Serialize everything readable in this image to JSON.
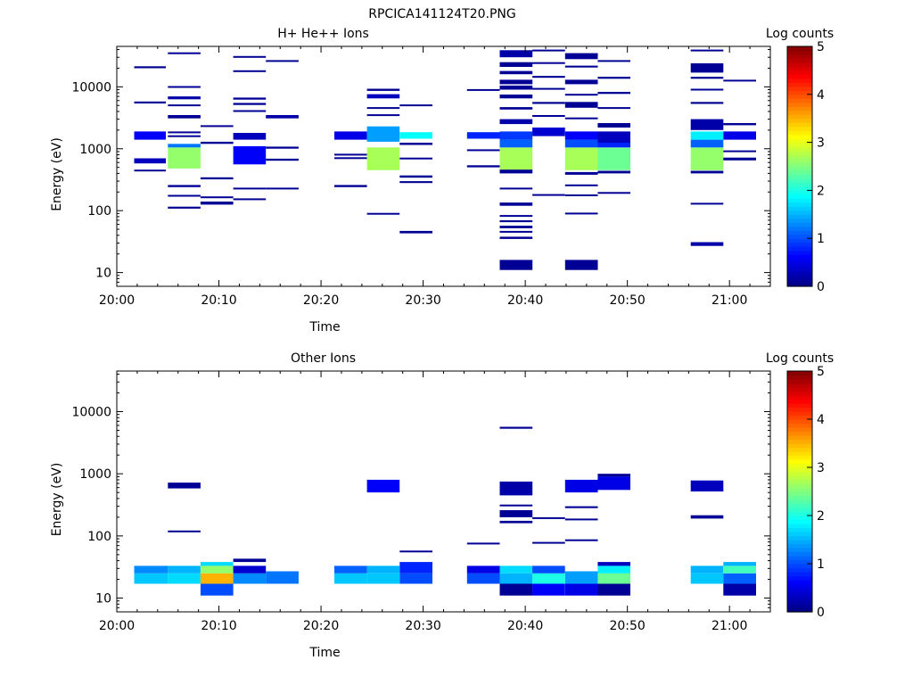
{
  "page": {
    "title": "RPCICA141124T20.PNG"
  },
  "chart_data": [
    {
      "type": "heatmap",
      "title": "H+ He++ Ions",
      "xlabel": "Time",
      "ylabel": "Energy (eV)",
      "x_ticks": [
        "20:00",
        "20:10",
        "20:20",
        "20:30",
        "20:40",
        "20:50",
        "21:00"
      ],
      "x_tick_minutes": [
        0,
        10,
        20,
        30,
        40,
        50,
        60
      ],
      "xlim_minutes": [
        0,
        64
      ],
      "y_scale": "log",
      "y_ticks": [
        "10",
        "100",
        "1000",
        "10000"
      ],
      "y_tick_values": [
        10,
        100,
        1000,
        10000
      ],
      "ylim": [
        6,
        45000
      ],
      "colorbar": {
        "label": "Log counts",
        "ticks": [
          "0",
          "1",
          "2",
          "3",
          "4",
          "5"
        ],
        "range": [
          0,
          5
        ]
      },
      "cells": [
        [
          1.7,
          4.8,
          1400,
          1900,
          0.6
        ],
        [
          1.7,
          4.8,
          580,
          700,
          0.3
        ],
        [
          1.7,
          4.8,
          20000,
          21500,
          0.1
        ],
        [
          1.7,
          4.8,
          5400,
          5800,
          0.1
        ],
        [
          1.7,
          4.8,
          430,
          460,
          0.1
        ],
        [
          5.0,
          8.2,
          480,
          1050,
          2.6
        ],
        [
          5.0,
          8.2,
          1050,
          1200,
          1.2
        ],
        [
          5.0,
          8.2,
          6300,
          7000,
          0.2
        ],
        [
          5.0,
          8.2,
          3100,
          3500,
          0.1
        ],
        [
          5.0,
          8.2,
          9700,
          10300,
          0.1
        ],
        [
          5.0,
          8.2,
          34000,
          36000,
          0.1
        ],
        [
          5.0,
          8.2,
          4900,
          5200,
          0.1
        ],
        [
          5.0,
          8.2,
          1800,
          1900,
          0.1
        ],
        [
          5.0,
          8.2,
          1550,
          1650,
          0.1
        ],
        [
          5.0,
          8.2,
          240,
          260,
          0.1
        ],
        [
          5.0,
          8.2,
          170,
          180,
          0.1
        ],
        [
          5.0,
          8.2,
          108,
          116,
          0.1
        ],
        [
          8.2,
          11.4,
          2250,
          2400,
          0.1
        ],
        [
          8.2,
          11.4,
          1200,
          1300,
          0.1
        ],
        [
          8.2,
          11.4,
          320,
          345,
          0.1
        ],
        [
          8.2,
          11.4,
          160,
          170,
          0.1
        ],
        [
          8.2,
          11.4,
          125,
          140,
          0.1
        ],
        [
          11.4,
          14.6,
          560,
          1100,
          0.6
        ],
        [
          11.4,
          14.6,
          1400,
          1800,
          0.3
        ],
        [
          11.4,
          14.6,
          6200,
          6700,
          0.1
        ],
        [
          11.4,
          14.6,
          5100,
          5500,
          0.1
        ],
        [
          11.4,
          14.6,
          4000,
          4200,
          0.1
        ],
        [
          11.4,
          14.6,
          17500,
          18500,
          0.1
        ],
        [
          11.4,
          14.6,
          30000,
          31500,
          0.1
        ],
        [
          11.4,
          14.6,
          225,
          235,
          0.1
        ],
        [
          11.4,
          14.6,
          148,
          158,
          0.1
        ],
        [
          14.6,
          17.8,
          3100,
          3500,
          0.2
        ],
        [
          14.6,
          17.8,
          25500,
          27000,
          0.1
        ],
        [
          14.6,
          17.8,
          1000,
          1080,
          0.1
        ],
        [
          14.6,
          17.8,
          640,
          690,
          0.1
        ],
        [
          14.6,
          17.8,
          220,
          235,
          0.1
        ],
        [
          21.3,
          24.5,
          1400,
          1900,
          0.5
        ],
        [
          21.3,
          24.5,
          780,
          830,
          0.1
        ],
        [
          21.3,
          24.5,
          690,
          730,
          0.1
        ],
        [
          21.3,
          24.5,
          240,
          260,
          0.1
        ],
        [
          24.5,
          27.7,
          450,
          1050,
          2.7
        ],
        [
          24.5,
          27.7,
          1300,
          2300,
          1.4
        ],
        [
          24.5,
          27.7,
          6500,
          7600,
          0.3
        ],
        [
          24.5,
          27.7,
          8600,
          9300,
          0.1
        ],
        [
          24.5,
          27.7,
          4400,
          4700,
          0.1
        ],
        [
          24.5,
          27.7,
          3400,
          3600,
          0.1
        ],
        [
          24.5,
          27.7,
          86,
          92,
          0.1
        ],
        [
          27.7,
          30.9,
          1450,
          1850,
          1.9
        ],
        [
          27.7,
          30.9,
          4900,
          5200,
          0.1
        ],
        [
          27.7,
          30.9,
          1150,
          1250,
          0.1
        ],
        [
          27.7,
          30.9,
          680,
          720,
          0.1
        ],
        [
          27.7,
          30.9,
          340,
          370,
          0.1
        ],
        [
          27.7,
          30.9,
          280,
          300,
          0.1
        ],
        [
          27.7,
          30.9,
          43,
          47,
          0.1
        ],
        [
          34.3,
          37.5,
          1450,
          1850,
          0.8
        ],
        [
          34.3,
          37.5,
          8700,
          9200,
          0.1
        ],
        [
          34.3,
          37.5,
          920,
          980,
          0.1
        ],
        [
          34.3,
          37.5,
          500,
          540,
          0.1
        ],
        [
          37.5,
          40.7,
          450,
          1050,
          2.7
        ],
        [
          37.5,
          40.7,
          1050,
          1400,
          1.1
        ],
        [
          37.5,
          40.7,
          1400,
          1900,
          0.9
        ],
        [
          37.5,
          40.7,
          2500,
          3000,
          0.2
        ],
        [
          37.5,
          40.7,
          30000,
          39000,
          0.2
        ],
        [
          37.5,
          40.7,
          21000,
          25000,
          0.1
        ],
        [
          37.5,
          40.7,
          16000,
          18000,
          0.1
        ],
        [
          37.5,
          40.7,
          11000,
          13000,
          0.1
        ],
        [
          37.5,
          40.7,
          9000,
          10500,
          0.1
        ],
        [
          37.5,
          40.7,
          6500,
          7500,
          0.1
        ],
        [
          37.5,
          40.7,
          4300,
          4700,
          0.1
        ],
        [
          37.5,
          40.7,
          11,
          16,
          0.1
        ],
        [
          37.5,
          40.7,
          400,
          460,
          0.1
        ],
        [
          37.5,
          40.7,
          220,
          235,
          0.1
        ],
        [
          37.5,
          40.7,
          120,
          135,
          0.1
        ],
        [
          37.5,
          40.7,
          80,
          85,
          0.1
        ],
        [
          37.5,
          40.7,
          65,
          70,
          0.1
        ],
        [
          37.5,
          40.7,
          52,
          57,
          0.1
        ],
        [
          37.5,
          40.7,
          44,
          47,
          0.1
        ],
        [
          37.5,
          40.7,
          35,
          38,
          0.1
        ],
        [
          40.7,
          43.9,
          1600,
          2200,
          0.4
        ],
        [
          40.7,
          43.9,
          38000,
          40000,
          0.1
        ],
        [
          40.7,
          43.9,
          23500,
          25000,
          0.1
        ],
        [
          40.7,
          43.9,
          14000,
          15000,
          0.1
        ],
        [
          40.7,
          43.9,
          9000,
          9600,
          0.1
        ],
        [
          40.7,
          43.9,
          5300,
          5700,
          0.1
        ],
        [
          40.7,
          43.9,
          3300,
          3500,
          0.1
        ],
        [
          40.7,
          43.9,
          180,
          185,
          0.1
        ],
        [
          43.9,
          47.1,
          450,
          1050,
          2.7
        ],
        [
          43.9,
          47.1,
          1050,
          1400,
          1.0
        ],
        [
          43.9,
          47.1,
          1400,
          1900,
          0.6
        ],
        [
          43.9,
          47.1,
          28000,
          35000,
          0.1
        ],
        [
          43.9,
          47.1,
          20500,
          22000,
          0.1
        ],
        [
          43.9,
          47.1,
          11000,
          13000,
          0.1
        ],
        [
          43.9,
          47.1,
          7200,
          7700,
          0.1
        ],
        [
          43.9,
          47.1,
          4600,
          5700,
          0.1
        ],
        [
          43.9,
          47.1,
          3000,
          3200,
          0.1
        ],
        [
          43.9,
          47.1,
          380,
          420,
          0.1
        ],
        [
          43.9,
          47.1,
          250,
          265,
          0.1
        ],
        [
          43.9,
          47.1,
          178,
          183,
          0.1
        ],
        [
          43.9,
          47.1,
          88,
          93,
          0.1
        ],
        [
          43.9,
          47.1,
          11,
          16,
          0.1
        ],
        [
          47.1,
          50.3,
          450,
          1050,
          2.4
        ],
        [
          47.1,
          50.3,
          1050,
          1250,
          0.8
        ],
        [
          47.1,
          50.3,
          1250,
          1900,
          0.3
        ],
        [
          47.1,
          50.3,
          2200,
          2600,
          0.1
        ],
        [
          47.1,
          50.3,
          25500,
          27000,
          0.1
        ],
        [
          47.1,
          50.3,
          13500,
          14500,
          0.1
        ],
        [
          47.1,
          50.3,
          7700,
          8300,
          0.1
        ],
        [
          47.1,
          50.3,
          4400,
          4700,
          0.1
        ],
        [
          47.1,
          50.3,
          400,
          440,
          0.1
        ],
        [
          47.1,
          50.3,
          190,
          200,
          0.1
        ],
        [
          56.2,
          59.4,
          450,
          1050,
          2.6
        ],
        [
          56.2,
          59.4,
          1050,
          1400,
          1.1
        ],
        [
          56.2,
          59.4,
          1400,
          1900,
          1.8
        ],
        [
          56.2,
          59.4,
          2000,
          3000,
          0.2
        ],
        [
          56.2,
          59.4,
          17000,
          24000,
          0.1
        ],
        [
          56.2,
          59.4,
          38000,
          40000,
          0.1
        ],
        [
          56.2,
          59.4,
          13500,
          14500,
          0.1
        ],
        [
          56.2,
          59.4,
          8800,
          9300,
          0.1
        ],
        [
          56.2,
          59.4,
          5300,
          5700,
          0.1
        ],
        [
          56.2,
          59.4,
          400,
          440,
          0.1
        ],
        [
          56.2,
          59.4,
          126,
          134,
          0.1
        ],
        [
          56.2,
          59.4,
          27,
          31,
          0.2
        ],
        [
          59.4,
          62.6,
          1400,
          1900,
          0.5
        ],
        [
          59.4,
          62.6,
          12300,
          13000,
          0.1
        ],
        [
          59.4,
          62.6,
          2400,
          2600,
          0.1
        ],
        [
          59.4,
          62.6,
          880,
          940,
          0.1
        ],
        [
          59.4,
          62.6,
          650,
          720,
          0.1
        ]
      ]
    },
    {
      "type": "heatmap",
      "title": "Other Ions",
      "xlabel": "Time",
      "ylabel": "Energy (eV)",
      "x_ticks": [
        "20:00",
        "20:10",
        "20:20",
        "20:30",
        "20:40",
        "20:50",
        "21:00"
      ],
      "x_tick_minutes": [
        0,
        10,
        20,
        30,
        40,
        50,
        60
      ],
      "xlim_minutes": [
        0,
        64
      ],
      "y_scale": "log",
      "y_ticks": [
        "10",
        "100",
        "1000",
        "10000"
      ],
      "y_tick_values": [
        10,
        100,
        1000,
        10000
      ],
      "ylim": [
        6,
        45000
      ],
      "colorbar": {
        "label": "Log counts",
        "ticks": [
          "0",
          "1",
          "2",
          "3",
          "4",
          "5"
        ],
        "range": [
          0,
          5
        ]
      },
      "cells": [
        [
          1.7,
          5.0,
          17,
          25,
          1.6
        ],
        [
          1.7,
          5.0,
          25,
          33,
          1.3
        ],
        [
          5.0,
          8.2,
          17,
          25,
          1.7
        ],
        [
          5.0,
          8.2,
          25,
          33,
          1.5
        ],
        [
          5.0,
          8.2,
          580,
          720,
          0.1
        ],
        [
          5.0,
          8.2,
          115,
          122,
          0.1
        ],
        [
          8.2,
          11.4,
          11,
          17,
          1.0
        ],
        [
          8.2,
          11.4,
          17,
          25,
          3.5
        ],
        [
          8.2,
          11.4,
          25,
          33,
          2.6
        ],
        [
          8.2,
          11.4,
          33,
          38,
          1.7
        ],
        [
          11.4,
          14.6,
          17,
          25,
          1.3
        ],
        [
          11.4,
          14.6,
          25,
          33,
          0.4
        ],
        [
          11.4,
          14.6,
          38,
          43,
          0.1
        ],
        [
          14.6,
          17.8,
          17,
          27,
          1.2
        ],
        [
          21.3,
          24.5,
          17,
          25,
          1.6
        ],
        [
          21.3,
          24.5,
          25,
          33,
          1.1
        ],
        [
          24.5,
          27.7,
          17,
          25,
          1.6
        ],
        [
          24.5,
          27.7,
          25,
          33,
          1.5
        ],
        [
          24.5,
          27.7,
          500,
          800,
          0.6
        ],
        [
          27.7,
          30.9,
          17,
          25,
          1.0
        ],
        [
          27.7,
          30.9,
          25,
          38,
          0.8
        ],
        [
          27.7,
          30.9,
          55,
          58,
          0.1
        ],
        [
          34.3,
          37.5,
          17,
          25,
          1.0
        ],
        [
          34.3,
          37.5,
          25,
          33,
          0.5
        ],
        [
          34.3,
          37.5,
          75,
          78,
          0.1
        ],
        [
          37.5,
          40.7,
          11,
          17,
          0.1
        ],
        [
          37.5,
          40.7,
          17,
          25,
          1.5
        ],
        [
          37.5,
          40.7,
          25,
          33,
          1.7
        ],
        [
          37.5,
          40.7,
          450,
          750,
          0.2
        ],
        [
          37.5,
          40.7,
          5300,
          5700,
          0.1
        ],
        [
          37.5,
          40.7,
          300,
          320,
          0.1
        ],
        [
          37.5,
          40.7,
          200,
          260,
          0.1
        ],
        [
          37.5,
          40.7,
          160,
          175,
          0.1
        ],
        [
          40.7,
          43.9,
          11,
          17,
          0.6
        ],
        [
          40.7,
          43.9,
          17,
          25,
          2.0
        ],
        [
          40.7,
          43.9,
          25,
          33,
          1.0
        ],
        [
          40.7,
          43.9,
          190,
          200,
          0.1
        ],
        [
          40.7,
          43.9,
          75,
          80,
          0.1
        ],
        [
          43.9,
          47.1,
          11,
          17,
          0.5
        ],
        [
          43.9,
          47.1,
          17,
          27,
          1.4
        ],
        [
          43.9,
          47.1,
          500,
          800,
          0.5
        ],
        [
          43.9,
          47.1,
          280,
          300,
          0.1
        ],
        [
          43.9,
          47.1,
          180,
          190,
          0.1
        ],
        [
          43.9,
          47.1,
          85,
          88,
          0.1
        ],
        [
          47.1,
          50.3,
          11,
          17,
          0.1
        ],
        [
          47.1,
          50.3,
          17,
          25,
          2.4
        ],
        [
          47.1,
          50.3,
          25,
          33,
          1.8
        ],
        [
          47.1,
          50.3,
          33,
          38,
          0.3
        ],
        [
          47.1,
          50.3,
          550,
          900,
          0.5
        ],
        [
          47.1,
          50.3,
          900,
          1000,
          0.1
        ],
        [
          56.2,
          59.4,
          17,
          25,
          1.6
        ],
        [
          56.2,
          59.4,
          25,
          33,
          1.5
        ],
        [
          56.2,
          59.4,
          520,
          780,
          0.3
        ],
        [
          56.2,
          59.4,
          190,
          215,
          0.1
        ],
        [
          59.4,
          62.6,
          11,
          17,
          0.2
        ],
        [
          59.4,
          62.6,
          17,
          25,
          1.1
        ],
        [
          59.4,
          62.6,
          25,
          33,
          2.2
        ],
        [
          59.4,
          62.6,
          33,
          38,
          1.5
        ]
      ]
    }
  ]
}
